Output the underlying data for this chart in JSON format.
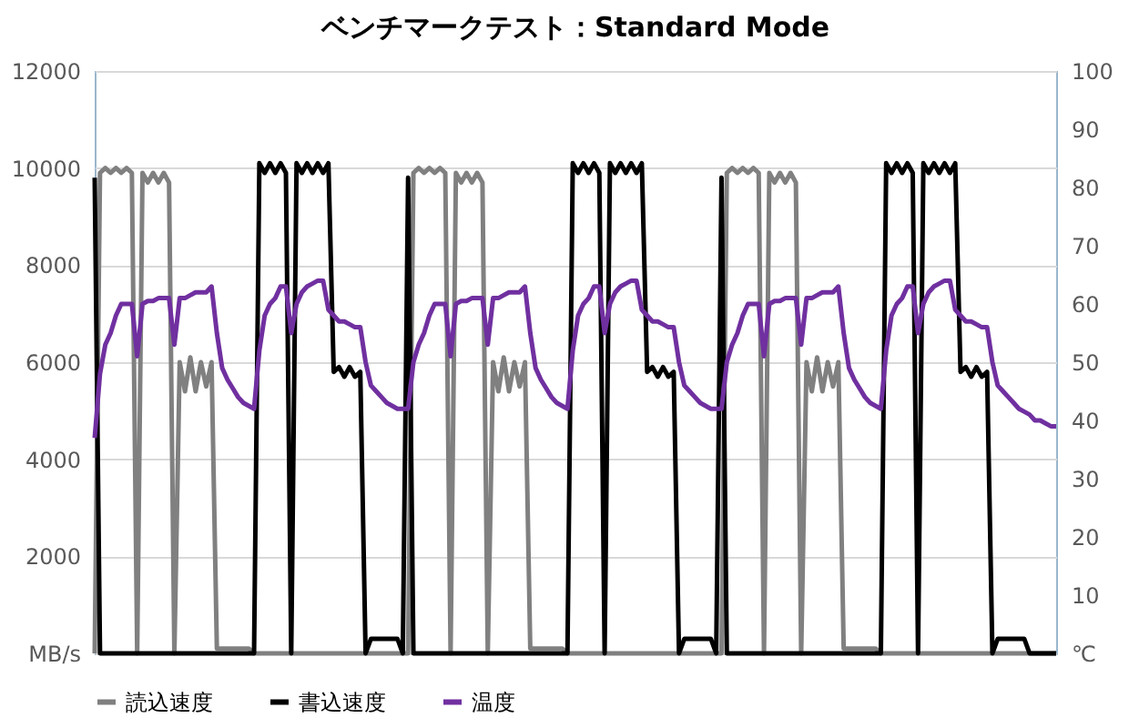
{
  "chart_data": {
    "type": "line",
    "title": "ベンチマークテスト：Standard Mode",
    "categories": [
      null,
      null,
      null,
      null,
      null,
      null,
      null,
      null,
      null,
      null,
      null,
      null,
      null,
      null,
      null,
      null,
      null,
      null,
      null,
      null,
      null,
      null,
      null,
      null,
      null,
      null,
      null,
      null,
      null,
      null,
      null,
      null,
      null,
      null,
      null,
      null,
      null,
      null,
      null,
      null,
      null,
      null,
      null,
      null,
      null,
      null,
      null,
      null,
      null,
      null,
      null,
      null,
      null,
      null,
      null,
      null,
      null,
      null,
      null,
      null,
      null,
      null,
      null,
      null,
      null,
      null,
      null,
      null,
      null,
      null,
      null,
      null,
      null,
      null,
      null,
      null,
      null,
      null,
      null,
      null,
      null,
      null,
      null,
      null,
      null,
      null,
      null,
      null,
      null,
      null,
      null,
      null,
      null,
      null,
      null,
      null,
      null,
      null,
      null,
      null,
      null,
      null,
      null,
      null,
      null,
      null,
      null,
      null,
      null,
      null,
      null,
      null,
      null,
      null,
      null,
      null,
      null,
      null,
      null,
      null,
      null,
      null,
      null,
      null,
      null,
      null,
      null,
      null,
      null,
      null,
      null,
      null,
      null,
      null,
      null,
      null,
      null,
      null,
      null,
      null,
      null,
      null,
      null,
      null,
      null,
      null,
      null,
      null,
      null,
      null,
      null,
      null,
      null,
      null,
      null,
      null,
      null,
      null,
      null,
      null,
      null,
      null,
      null,
      null,
      null,
      null,
      null,
      null,
      null,
      null,
      null,
      null,
      null,
      null,
      null,
      null,
      null,
      null,
      null,
      null,
      null,
      null
    ],
    "series": [
      {
        "name": "読込速度",
        "color": "#808080",
        "values": [
          0,
          9900,
          10000,
          9900,
          10000,
          9900,
          10000,
          9900,
          0,
          9900,
          9700,
          9900,
          9700,
          9900,
          9700,
          0,
          6000,
          5400,
          6100,
          5400,
          6000,
          5500,
          6000,
          100,
          100,
          100,
          100,
          100,
          100,
          100,
          0,
          0,
          0,
          0,
          0,
          0,
          0,
          0,
          0,
          0,
          0,
          0,
          0,
          0,
          0,
          0,
          0,
          0,
          0,
          0,
          0,
          0,
          0,
          0,
          0,
          0,
          0,
          0,
          0,
          0,
          9900,
          10000,
          9900,
          10000,
          9900,
          10000,
          9900,
          0,
          9900,
          9700,
          9900,
          9700,
          9900,
          9700,
          0,
          6000,
          5400,
          6100,
          5400,
          6000,
          5500,
          6000,
          100,
          100,
          100,
          100,
          100,
          100,
          100,
          0,
          0,
          0,
          0,
          0,
          0,
          0,
          0,
          0,
          0,
          0,
          0,
          0,
          0,
          0,
          0,
          0,
          0,
          0,
          0,
          0,
          0,
          0,
          0,
          0,
          0,
          0,
          0,
          0,
          0,
          9900,
          10000,
          9900,
          10000,
          9900,
          10000,
          9900,
          0,
          9900,
          9700,
          9900,
          9700,
          9900,
          9700,
          0,
          6000,
          5400,
          6100,
          5400,
          6000,
          5500,
          6000,
          100,
          100,
          100,
          100,
          100,
          100,
          100,
          0,
          0,
          0,
          0,
          0,
          0,
          0,
          0,
          0,
          0,
          0,
          0,
          0,
          0,
          0,
          0,
          0,
          0,
          0,
          0,
          0,
          0,
          0,
          0,
          0,
          0,
          0,
          0,
          0,
          0,
          0,
          0,
          0,
          0
        ]
      },
      {
        "name": "書込速度",
        "color": "#000000",
        "values": [
          9800,
          0,
          0,
          0,
          0,
          0,
          0,
          0,
          0,
          0,
          0,
          0,
          0,
          0,
          0,
          0,
          0,
          0,
          0,
          0,
          0,
          0,
          0,
          0,
          0,
          0,
          0,
          0,
          0,
          0,
          0,
          10100,
          9900,
          10100,
          9900,
          10100,
          9900,
          0,
          10100,
          9900,
          10100,
          9900,
          10100,
          9900,
          10100,
          5800,
          5900,
          5700,
          5900,
          5700,
          5800,
          0,
          300,
          300,
          300,
          300,
          300,
          300,
          0,
          9800,
          0,
          0,
          0,
          0,
          0,
          0,
          0,
          0,
          0,
          0,
          0,
          0,
          0,
          0,
          0,
          0,
          0,
          0,
          0,
          0,
          0,
          0,
          0,
          0,
          0,
          0,
          0,
          0,
          0,
          0,
          10100,
          9900,
          10100,
          9900,
          10100,
          9900,
          0,
          10100,
          9900,
          10100,
          9900,
          10100,
          9900,
          10100,
          5800,
          5900,
          5700,
          5900,
          5700,
          5800,
          0,
          300,
          300,
          300,
          300,
          300,
          300,
          0,
          9800,
          0,
          0,
          0,
          0,
          0,
          0,
          0,
          0,
          0,
          0,
          0,
          0,
          0,
          0,
          0,
          0,
          0,
          0,
          0,
          0,
          0,
          0,
          0,
          0,
          0,
          0,
          0,
          0,
          0,
          0,
          10100,
          9900,
          10100,
          9900,
          10100,
          9900,
          0,
          10100,
          9900,
          10100,
          9900,
          10100,
          9900,
          10100,
          5800,
          5900,
          5700,
          5900,
          5700,
          5800,
          0,
          300,
          300,
          300,
          300,
          300,
          300,
          0,
          0,
          0,
          0,
          0,
          0
        ]
      },
      {
        "name": "温度",
        "color": "#7030a0",
        "axis": "y2",
        "values": [
          37,
          48,
          53,
          55,
          58,
          60,
          60,
          60,
          51,
          60,
          60.5,
          60.5,
          61,
          61,
          61,
          53,
          61,
          61,
          61.5,
          62,
          62,
          62,
          63,
          55,
          49,
          47,
          45.5,
          44,
          43,
          42.5,
          42,
          52,
          58,
          60,
          61,
          63,
          63,
          55,
          60,
          62,
          63,
          63.5,
          64,
          64,
          59,
          58,
          57,
          57,
          56.5,
          56,
          56,
          50,
          46,
          45,
          44,
          43,
          42.5,
          42,
          42,
          42,
          50,
          53,
          55,
          58,
          60,
          60,
          60,
          51,
          60,
          60.5,
          60.5,
          61,
          61,
          61,
          53,
          61,
          61,
          61.5,
          62,
          62,
          62,
          63,
          55,
          49,
          47,
          45.5,
          44,
          43,
          42.5,
          42,
          52,
          58,
          60,
          61,
          63,
          63,
          55,
          60,
          62,
          63,
          63.5,
          64,
          64,
          59,
          58,
          57,
          57,
          56.5,
          56,
          56,
          50,
          46,
          45,
          44,
          43,
          42.5,
          42,
          42,
          42,
          50,
          53,
          55,
          58,
          60,
          60,
          60,
          51,
          60,
          60.5,
          60.5,
          61,
          61,
          61,
          53,
          61,
          61,
          61.5,
          62,
          62,
          62,
          63,
          55,
          49,
          47,
          45.5,
          44,
          43,
          42.5,
          42,
          52,
          58,
          60,
          61,
          63,
          63,
          55,
          60,
          62,
          63,
          63.5,
          64,
          64,
          59,
          58,
          57,
          57,
          56.5,
          56,
          56,
          50,
          46,
          45,
          44,
          43,
          42,
          41.5,
          41,
          40,
          40,
          39.5,
          39,
          39
        ]
      }
    ],
    "ylim": [
      0,
      12000
    ],
    "yticks": [
      {
        "value": 0,
        "label": "MB/s"
      },
      2000,
      4000,
      6000,
      8000,
      10000,
      12000
    ],
    "y2lim": [
      0,
      100
    ],
    "y2ticks": [
      {
        "value": 0,
        "label": "℃"
      },
      10,
      20,
      30,
      40,
      50,
      60,
      70,
      80,
      90,
      100
    ],
    "grid": "y",
    "legend": "bottom",
    "marker": "none",
    "line_style": "solid"
  }
}
